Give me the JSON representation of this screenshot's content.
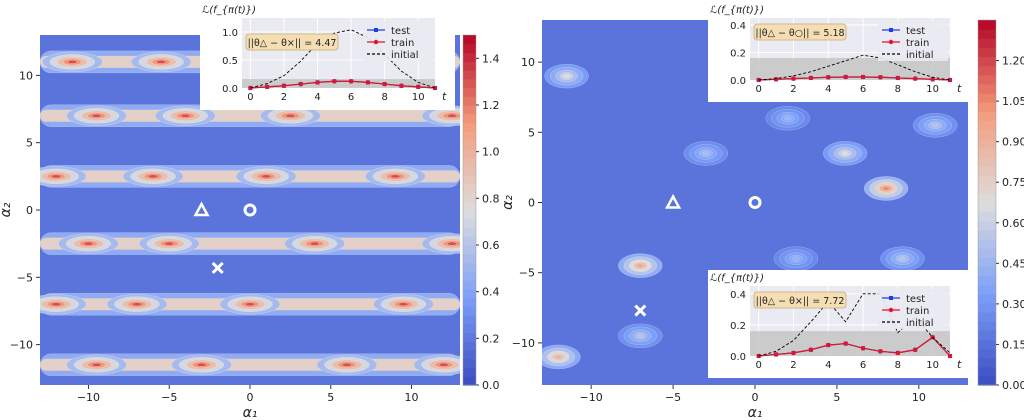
{
  "chart_data": [
    {
      "type": "heatmap",
      "subtype": "filled-contour",
      "panel": "left",
      "xlabel": "α₁",
      "ylabel": "α₂",
      "xlim": [
        -13,
        13
      ],
      "ylim": [
        -13,
        13
      ],
      "xticks": [
        -10,
        -5,
        0,
        5,
        10
      ],
      "yticks": [
        -10,
        -5,
        0,
        5,
        10
      ],
      "colormap": "coolwarm",
      "colorbar": {
        "min": 0.0,
        "max": 1.5,
        "ticks": [
          "0.0",
          "0.2",
          "0.4",
          "0.6",
          "0.8",
          "1.0",
          "1.2",
          "1.4"
        ]
      },
      "pattern": "horizontal stripes",
      "stripes": [
        {
          "a2": 11.0,
          "peaks": [
            -11.0,
            -5.5,
            1.5,
            8.5
          ]
        },
        {
          "a2": 7.0,
          "peaks": [
            -9.5,
            -4.0,
            2.5,
            12.5
          ]
        },
        {
          "a2": 2.5,
          "peaks": [
            -12.0,
            -6.0,
            1.0,
            9.0
          ]
        },
        {
          "a2": -2.5,
          "peaks": [
            -10.0,
            -5.0,
            4.0,
            12.5
          ]
        },
        {
          "a2": -7.0,
          "peaks": [
            -12.0,
            -7.0,
            0.0,
            9.5
          ]
        },
        {
          "a2": -11.5,
          "peaks": [
            -9.5,
            -3.0,
            6.0,
            12.0
          ]
        }
      ],
      "markers": [
        {
          "symbol": "△",
          "a1": -3.0,
          "a2": 0.0
        },
        {
          "symbol": "○",
          "a1": 0.0,
          "a2": 0.0
        },
        {
          "symbol": "×",
          "a1": -2.0,
          "a2": -4.3
        }
      ],
      "insets": [
        {
          "position": "top-right",
          "type": "line",
          "ylabel": "ℒ(f_{π(t)})",
          "xlabel": "t",
          "xticks": [
            0,
            2,
            4,
            6,
            8,
            10
          ],
          "yticks": [
            "0.0",
            "0.5",
            "1.0"
          ],
          "ylim": [
            0,
            1.25
          ],
          "xlim": [
            -0.5,
            11
          ],
          "band": [
            0,
            0.16
          ],
          "annotation": "||θ△ − θ×|| = 4.47",
          "legend": [
            "test",
            "train",
            "initial"
          ],
          "series": [
            {
              "name": "test",
              "color": "#1f3fe0",
              "marker": "square",
              "x": [
                0,
                1,
                2,
                3,
                4,
                5,
                6,
                7,
                8,
                9,
                10,
                11
              ],
              "y": [
                0.0,
                0.02,
                0.04,
                0.07,
                0.1,
                0.12,
                0.12,
                0.1,
                0.07,
                0.04,
                0.02,
                0.0
              ]
            },
            {
              "name": "train",
              "color": "#e0152a",
              "marker": "circle",
              "x": [
                0,
                1,
                2,
                3,
                4,
                5,
                6,
                7,
                8,
                9,
                10,
                11
              ],
              "y": [
                0.0,
                0.02,
                0.04,
                0.07,
                0.1,
                0.12,
                0.12,
                0.1,
                0.07,
                0.04,
                0.02,
                0.0
              ]
            },
            {
              "name": "initial",
              "color": "#000000",
              "marker": "none",
              "dashed": true,
              "x": [
                0,
                1,
                2,
                3,
                4,
                5,
                6,
                7,
                8,
                9,
                10,
                11
              ],
              "y": [
                0.0,
                0.08,
                0.22,
                0.48,
                0.8,
                0.98,
                1.04,
                0.9,
                0.6,
                0.3,
                0.1,
                0.0
              ]
            }
          ]
        }
      ]
    },
    {
      "type": "heatmap",
      "subtype": "filled-contour",
      "panel": "right",
      "xlabel": "α₁",
      "ylabel": "α₂",
      "xlim": [
        -13,
        13
      ],
      "ylim": [
        -13,
        13
      ],
      "xticks": [
        -10,
        -5,
        0,
        5,
        10
      ],
      "yticks": [
        -10,
        -5,
        0,
        5,
        10
      ],
      "colormap": "coolwarm",
      "colorbar": {
        "min": 0.0,
        "max": 1.35,
        "ticks": [
          "0.00",
          "0.15",
          "0.30",
          "0.45",
          "0.60",
          "0.75",
          "0.90",
          "1.05",
          "1.20"
        ]
      },
      "pattern": "scattered blobs",
      "blobs": [
        {
          "a1": 8.0,
          "a2": 1.0,
          "value": 1.1
        },
        {
          "a1": 5.5,
          "a2": 3.5,
          "value": 0.7
        },
        {
          "a1": -7.0,
          "a2": -4.5,
          "value": 1.0
        },
        {
          "a1": -12.0,
          "a2": -11.0,
          "value": 0.95
        },
        {
          "a1": -11.5,
          "a2": 9.0,
          "value": 0.7
        },
        {
          "a1": -3.0,
          "a2": 3.5,
          "value": 0.5
        },
        {
          "a1": 2.0,
          "a2": 6.0,
          "value": 0.45
        },
        {
          "a1": -7.0,
          "a2": -9.5,
          "value": 0.55
        },
        {
          "a1": 9.0,
          "a2": -4.0,
          "value": 0.55
        },
        {
          "a1": 2.5,
          "a2": -4.0,
          "value": 0.45
        },
        {
          "a1": 11.0,
          "a2": 5.5,
          "value": 0.55
        },
        {
          "a1": -1.0,
          "a2": -10.0,
          "value": 0.65
        }
      ],
      "markers": [
        {
          "symbol": "△",
          "a1": -5.0,
          "a2": 0.0
        },
        {
          "symbol": "○",
          "a1": 0.0,
          "a2": 0.0
        },
        {
          "symbol": "×",
          "a1": -7.0,
          "a2": -7.7
        }
      ],
      "insets": [
        {
          "position": "top-right",
          "type": "line",
          "ylabel": "ℒ(f_{π(t)})",
          "xlabel": "t",
          "xticks": [
            0,
            2,
            4,
            6,
            8,
            10
          ],
          "yticks": [
            "0.0",
            "0.2",
            "0.4"
          ],
          "ylim": [
            0,
            0.45
          ],
          "xlim": [
            -0.5,
            11
          ],
          "band": [
            0,
            0.16
          ],
          "annotation": "||θ△ − θ○|| = 5.18",
          "legend": [
            "test",
            "train",
            "initial"
          ],
          "series": [
            {
              "name": "test",
              "color": "#1f3fe0",
              "marker": "square",
              "x": [
                0,
                1,
                2,
                3,
                4,
                5,
                6,
                7,
                8,
                9,
                10,
                11
              ],
              "y": [
                0.0,
                0.005,
                0.01,
                0.015,
                0.02,
                0.022,
                0.022,
                0.02,
                0.015,
                0.01,
                0.005,
                0.0
              ]
            },
            {
              "name": "train",
              "color": "#e0152a",
              "marker": "circle",
              "x": [
                0,
                1,
                2,
                3,
                4,
                5,
                6,
                7,
                8,
                9,
                10,
                11
              ],
              "y": [
                0.0,
                0.005,
                0.01,
                0.015,
                0.02,
                0.022,
                0.022,
                0.02,
                0.015,
                0.01,
                0.005,
                0.0
              ]
            },
            {
              "name": "initial",
              "color": "#000000",
              "marker": "none",
              "dashed": true,
              "x": [
                0,
                1,
                2,
                3,
                4,
                5,
                6,
                7,
                8,
                9,
                10,
                11
              ],
              "y": [
                0.0,
                0.01,
                0.03,
                0.06,
                0.1,
                0.14,
                0.18,
                0.16,
                0.11,
                0.06,
                0.02,
                0.0
              ]
            }
          ]
        },
        {
          "position": "bottom-right",
          "type": "line",
          "ylabel": "ℒ(f_{π(t)})",
          "xlabel": "t",
          "xticks": [
            0,
            2,
            4,
            6,
            8,
            10
          ],
          "yticks": [
            "0.0",
            "0.2",
            "0.4"
          ],
          "ylim": [
            0,
            0.45
          ],
          "xlim": [
            -0.5,
            11
          ],
          "band": [
            0,
            0.16
          ],
          "annotation": "||θ△ − θ×|| = 7.72",
          "legend": [
            "test",
            "train",
            "initial"
          ],
          "series": [
            {
              "name": "test",
              "color": "#1f3fe0",
              "marker": "square",
              "x": [
                0,
                1,
                2,
                3,
                4,
                5,
                6,
                7,
                8,
                9,
                10,
                11
              ],
              "y": [
                0.0,
                0.01,
                0.02,
                0.04,
                0.07,
                0.08,
                0.05,
                0.03,
                0.02,
                0.04,
                0.12,
                0.0
              ]
            },
            {
              "name": "train",
              "color": "#e0152a",
              "marker": "circle",
              "x": [
                0,
                1,
                2,
                3,
                4,
                5,
                6,
                7,
                8,
                9,
                10,
                11
              ],
              "y": [
                0.0,
                0.01,
                0.02,
                0.04,
                0.07,
                0.08,
                0.05,
                0.03,
                0.02,
                0.04,
                0.12,
                0.0
              ]
            },
            {
              "name": "initial",
              "color": "#000000",
              "marker": "none",
              "dashed": true,
              "x": [
                0,
                1,
                2,
                3,
                4,
                5,
                6,
                7,
                8,
                9,
                10,
                11
              ],
              "y": [
                0.0,
                0.03,
                0.1,
                0.22,
                0.35,
                0.22,
                0.4,
                0.4,
                0.15,
                0.25,
                0.12,
                0.02
              ]
            }
          ]
        }
      ]
    }
  ]
}
